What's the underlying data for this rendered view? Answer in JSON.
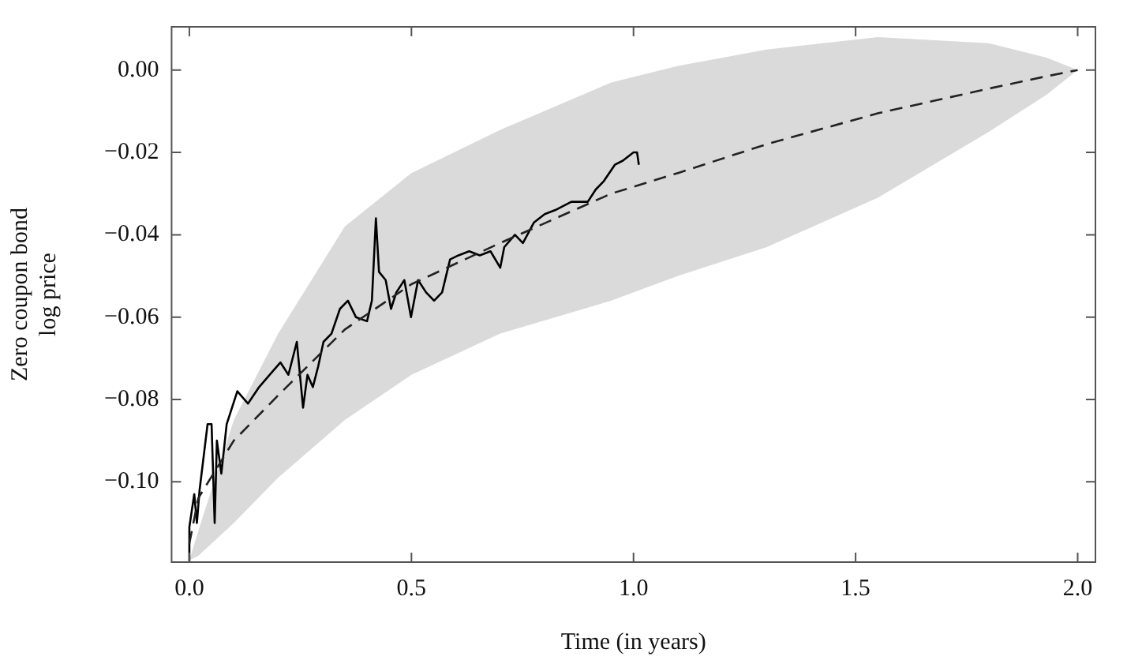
{
  "chart_data": {
    "type": "line",
    "xlabel": "Time (in years)",
    "ylabel": "Zero coupon bond\nlog price",
    "xlim": [
      -0.04,
      2.04
    ],
    "ylim": [
      -0.1195,
      0.0105
    ],
    "xticks": [
      {
        "value": 0,
        "label": "0.0"
      },
      {
        "value": 0.5,
        "label": "0.5"
      },
      {
        "value": 1,
        "label": "1.0"
      },
      {
        "value": 1.5,
        "label": "1.5"
      },
      {
        "value": 2,
        "label": "2.0"
      }
    ],
    "yticks": [
      {
        "value": 0,
        "label": "0.00"
      },
      {
        "value": -0.02,
        "label": "−0.02"
      },
      {
        "value": -0.04,
        "label": "−0.04"
      },
      {
        "value": -0.06,
        "label": "−0.06"
      },
      {
        "value": -0.08,
        "label": "−0.08"
      },
      {
        "value": -0.1,
        "label": "−0.10"
      }
    ],
    "grid": false,
    "legend": false,
    "marker": "none",
    "series": [
      {
        "type": "line",
        "color": "#222222",
        "line_style": "dashed",
        "x": [
          0,
          0.02,
          0.1,
          0.2,
          0.35,
          0.5,
          0.7,
          0.95,
          1.1,
          1.3,
          1.55,
          1.8,
          1.93,
          2.0
        ],
        "values": [
          -0.115,
          -0.104,
          -0.09,
          -0.079,
          -0.063,
          -0.052,
          -0.042,
          -0.03,
          -0.025,
          -0.018,
          -0.0105,
          -0.0045,
          -0.0015,
          0
        ],
        "lower": [
          -0.119,
          -0.118,
          -0.11,
          -0.099,
          -0.085,
          -0.074,
          -0.064,
          -0.056,
          -0.05,
          -0.043,
          -0.031,
          -0.015,
          -0.006,
          0
        ],
        "upper": [
          -0.119,
          -0.112,
          -0.085,
          -0.064,
          -0.038,
          -0.025,
          -0.0145,
          -0.003,
          0.001,
          0.005,
          0.008,
          0.0065,
          0.003,
          0
        ]
      },
      {
        "type": "line",
        "color": "#000000",
        "line_style": "solid",
        "x": [
          0,
          0,
          0.011,
          0.017,
          0.023,
          0.041,
          0.05,
          0.057,
          0.062,
          0.072,
          0.084,
          0.108,
          0.132,
          0.157,
          0.181,
          0.205,
          0.223,
          0.242,
          0.256,
          0.266,
          0.278,
          0.29,
          0.302,
          0.32,
          0.339,
          0.357,
          0.375,
          0.4,
          0.411,
          0.42,
          0.427,
          0.442,
          0.454,
          0.466,
          0.484,
          0.499,
          0.515,
          0.533,
          0.551,
          0.569,
          0.587,
          0.606,
          0.63,
          0.654,
          0.678,
          0.7,
          0.709,
          0.733,
          0.751,
          0.776,
          0.8,
          0.824,
          0.86,
          0.897,
          0.915,
          0.933,
          0.958,
          0.976,
          0.988,
          1.0,
          1.008,
          1.012
        ],
        "values": [
          -0.1195,
          -0.111,
          -0.103,
          -0.11,
          -0.102,
          -0.086,
          -0.086,
          -0.11,
          -0.09,
          -0.098,
          -0.086,
          -0.078,
          -0.081,
          -0.077,
          -0.074,
          -0.071,
          -0.074,
          -0.066,
          -0.082,
          -0.074,
          -0.077,
          -0.072,
          -0.066,
          -0.064,
          -0.058,
          -0.056,
          -0.06,
          -0.061,
          -0.056,
          -0.036,
          -0.049,
          -0.051,
          -0.058,
          -0.054,
          -0.051,
          -0.06,
          -0.051,
          -0.054,
          -0.056,
          -0.054,
          -0.046,
          -0.045,
          -0.044,
          -0.045,
          -0.044,
          -0.048,
          -0.043,
          -0.04,
          -0.042,
          -0.037,
          -0.035,
          -0.034,
          -0.032,
          -0.032,
          -0.029,
          -0.027,
          -0.023,
          -0.022,
          -0.021,
          -0.02,
          -0.02,
          -0.023
        ]
      }
    ]
  }
}
